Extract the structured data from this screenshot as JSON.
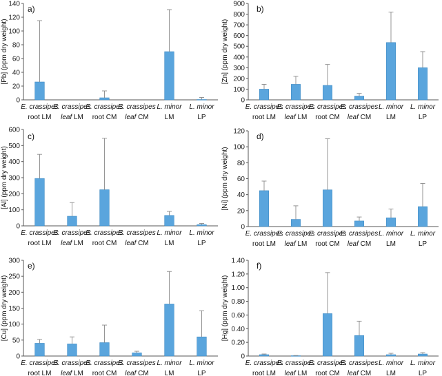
{
  "chart_data": [
    {
      "type": "bar",
      "panel_label": "a)",
      "ylabel": "[Pb] (ppm dry weight)",
      "ylim": [
        0,
        140
      ],
      "yticks": [
        0,
        20,
        40,
        60,
        80,
        100,
        120,
        140
      ],
      "ytick_labels": [
        "0",
        "20",
        "40",
        "60",
        "80",
        "100",
        "120",
        "140"
      ],
      "categories": [
        {
          "line1": "E. crassipes",
          "line2_pre": "",
          "line2_em": "root",
          "line2_post": " LM"
        },
        {
          "line1": "E. crassipes",
          "line2_pre": "",
          "line2_em": "leaf",
          "line2_post": " LM"
        },
        {
          "line1": "E. crassipes",
          "line2_pre": "",
          "line2_em": "root",
          "line2_post": " CM"
        },
        {
          "line1": "E. crassipes",
          "line2_pre": "",
          "line2_em": "leaf",
          "line2_post": " CM"
        },
        {
          "line1": "L. minor",
          "line2_pre": "LM",
          "line2_em": "",
          "line2_post": ""
        },
        {
          "line1": "L. minor",
          "line2_pre": "LP",
          "line2_em": "",
          "line2_post": ""
        }
      ],
      "values": [
        26,
        0,
        3,
        0,
        70,
        0.5
      ],
      "errors": [
        89,
        0,
        10,
        0,
        61,
        3
      ]
    },
    {
      "type": "bar",
      "panel_label": "b)",
      "ylabel": "[Zn] (ppm dry weight)",
      "ylim": [
        0,
        900
      ],
      "yticks": [
        0,
        100,
        200,
        300,
        400,
        500,
        600,
        700,
        800,
        900
      ],
      "ytick_labels": [
        "0",
        "100",
        "200",
        "300",
        "400",
        "500",
        "600",
        "700",
        "800",
        "900"
      ],
      "categories": [
        {
          "line1": "E. crassipes",
          "line2_pre": "",
          "line2_em": "root",
          "line2_post": " LM"
        },
        {
          "line1": "E. crassipes",
          "line2_pre": "",
          "line2_em": "leaf",
          "line2_post": " LM"
        },
        {
          "line1": "E. crassipes",
          "line2_pre": "",
          "line2_em": "root",
          "line2_post": " CM"
        },
        {
          "line1": "E. crassipes",
          "line2_pre": "",
          "line2_em": "leaf",
          "line2_post": " CM"
        },
        {
          "line1": "L. minor",
          "line2_pre": "LM",
          "line2_em": "",
          "line2_post": ""
        },
        {
          "line1": "L. minor",
          "line2_pre": "LP",
          "line2_em": "",
          "line2_post": ""
        }
      ],
      "values": [
        100,
        145,
        135,
        35,
        535,
        300
      ],
      "errors": [
        45,
        75,
        195,
        25,
        285,
        150
      ]
    },
    {
      "type": "bar",
      "panel_label": "c)",
      "ylabel": "[Al] (ppm dry weight)",
      "ylim": [
        0,
        600
      ],
      "yticks": [
        0,
        100,
        200,
        300,
        400,
        500,
        600
      ],
      "ytick_labels": [
        "0",
        "100",
        "200",
        "300",
        "400",
        "500",
        "600"
      ],
      "categories": [
        {
          "line1": "E. crassipes",
          "line2_pre": "",
          "line2_em": "root",
          "line2_post": " LM"
        },
        {
          "line1": "E. crassipes",
          "line2_pre": "",
          "line2_em": "leaf",
          "line2_post": " LM"
        },
        {
          "line1": "E. crassipes",
          "line2_pre": "",
          "line2_em": "root",
          "line2_post": " CM"
        },
        {
          "line1": "E. crassipes",
          "line2_pre": "",
          "line2_em": "leaf",
          "line2_post": " CM"
        },
        {
          "line1": "L. minor",
          "line2_pre": "LM",
          "line2_em": "",
          "line2_post": ""
        },
        {
          "line1": "L. minor",
          "line2_pre": "LP",
          "line2_em": "",
          "line2_post": ""
        }
      ],
      "values": [
        295,
        60,
        225,
        0,
        65,
        8
      ],
      "errors": [
        150,
        85,
        320,
        0,
        25,
        7
      ]
    },
    {
      "type": "bar",
      "panel_label": "d)",
      "ylabel": "[Ni] (ppm dry weight)",
      "ylim": [
        0,
        120
      ],
      "yticks": [
        0,
        20,
        40,
        60,
        80,
        100,
        120
      ],
      "ytick_labels": [
        "0",
        "20",
        "40",
        "60",
        "80",
        "100",
        "120"
      ],
      "categories": [
        {
          "line1": "E. crassipes",
          "line2_pre": "",
          "line2_em": "root",
          "line2_post": " LM"
        },
        {
          "line1": "E. crassipes",
          "line2_pre": "",
          "line2_em": "leaf",
          "line2_post": " LM"
        },
        {
          "line1": "E. crassipes",
          "line2_pre": "",
          "line2_em": "root",
          "line2_post": " CM"
        },
        {
          "line1": "E. crassipes",
          "line2_pre": "",
          "line2_em": "leaf",
          "line2_post": " CM"
        },
        {
          "line1": "L. minor",
          "line2_pre": "LM",
          "line2_em": "",
          "line2_post": ""
        },
        {
          "line1": "L. minor",
          "line2_pre": "LP",
          "line2_em": "",
          "line2_post": ""
        }
      ],
      "values": [
        45,
        9,
        46,
        7,
        11,
        25
      ],
      "errors": [
        12,
        17,
        64,
        5,
        11,
        29
      ]
    },
    {
      "type": "bar",
      "panel_label": "e)",
      "ylabel": "[Cu] (ppm dry weight)",
      "ylim": [
        0,
        300
      ],
      "yticks": [
        0,
        50,
        100,
        150,
        200,
        250,
        300
      ],
      "ytick_labels": [
        "0",
        "50",
        "100",
        "150",
        "200",
        "250",
        "300"
      ],
      "categories": [
        {
          "line1": "E. crassipes",
          "line2_pre": "",
          "line2_em": "root",
          "line2_post": " LM"
        },
        {
          "line1": "E. crassipes",
          "line2_pre": "",
          "line2_em": "leaf",
          "line2_post": " LM"
        },
        {
          "line1": "E. crassipes",
          "line2_pre": "",
          "line2_em": "root",
          "line2_post": " CM"
        },
        {
          "line1": "E. crassipes",
          "line2_pre": "",
          "line2_em": "leaf",
          "line2_post": " CM"
        },
        {
          "line1": "L. minor",
          "line2_pre": "LM",
          "line2_em": "",
          "line2_post": ""
        },
        {
          "line1": "L. minor",
          "line2_pre": "LP",
          "line2_em": "",
          "line2_post": ""
        }
      ],
      "values": [
        40,
        38,
        42,
        10,
        163,
        60
      ],
      "errors": [
        12,
        22,
        55,
        5,
        102,
        82
      ]
    },
    {
      "type": "bar",
      "panel_label": "f)",
      "ylabel": "[Hg] (ppm dry weight)",
      "ylim": [
        0,
        1.4
      ],
      "yticks": [
        0,
        0.2,
        0.4,
        0.6,
        0.8,
        1.0,
        1.2,
        1.4
      ],
      "ytick_labels": [
        "0",
        "0.20",
        "0.40",
        "0.60",
        "0.80",
        "1.00",
        "1.20",
        "1.40"
      ],
      "categories": [
        {
          "line1": "E. crassipes",
          "line2_pre": "",
          "line2_em": "root",
          "line2_post": " LM"
        },
        {
          "line1": "E. crassipes",
          "line2_pre": "",
          "line2_em": "leaf",
          "line2_post": " LM"
        },
        {
          "line1": "E. crassipes",
          "line2_pre": "",
          "line2_em": "root",
          "line2_post": " CM"
        },
        {
          "line1": "E. crassipes",
          "line2_pre": "",
          "line2_em": "leaf",
          "line2_post": " CM"
        },
        {
          "line1": "L. minor",
          "line2_pre": "LM",
          "line2_em": "",
          "line2_post": ""
        },
        {
          "line1": "L. minor",
          "line2_pre": "LP",
          "line2_em": "",
          "line2_post": ""
        }
      ],
      "values": [
        0.02,
        0.005,
        0.62,
        0.3,
        0.02,
        0.03
      ],
      "errors": [
        0.01,
        0.003,
        0.6,
        0.21,
        0.02,
        0.02
      ]
    }
  ]
}
